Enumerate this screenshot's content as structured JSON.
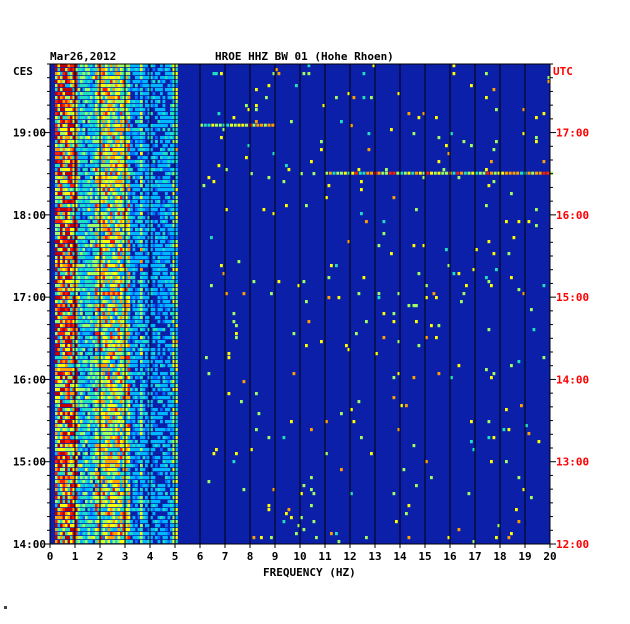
{
  "chart_data": {
    "type": "heatmap",
    "date": "Mar26,2012",
    "title": "HROE HHZ BW 01 (Hohe Rhoen)",
    "xlabel": "FREQUENCY (HZ)",
    "x_ticks": [
      "0",
      "1",
      "2",
      "3",
      "4",
      "5",
      "6",
      "7",
      "8",
      "9",
      "10",
      "11",
      "12",
      "13",
      "14",
      "15",
      "16",
      "17",
      "18",
      "19",
      "20"
    ],
    "xlim": [
      0,
      20
    ],
    "left_tz": "CES",
    "right_tz": "UTC",
    "left_ticks": [
      "19:00",
      "18:00",
      "17:00",
      "16:00",
      "15:00",
      "14:00"
    ],
    "right_ticks": [
      "17:00",
      "16:00",
      "15:00",
      "14:00",
      "13:00",
      "12:00"
    ],
    "time_range_ces": [
      "14:00",
      "19:50"
    ],
    "colors": {
      "background": "#0b1fa8",
      "grid": "#000000",
      "axis_text": "#000000",
      "utc_text": "#ff0000"
    },
    "strong_energy_bands_hz": [
      [
        0.2,
        1.0
      ],
      [
        1.8,
        3.2
      ],
      [
        3.6,
        3.7
      ],
      [
        4.8,
        5.0
      ]
    ],
    "notable_events_ces": [
      {
        "time": "19:05",
        "freq_range_hz": [
          6,
          9
        ]
      },
      {
        "time": "18:30",
        "freq_range_hz": [
          11,
          20
        ]
      }
    ]
  }
}
